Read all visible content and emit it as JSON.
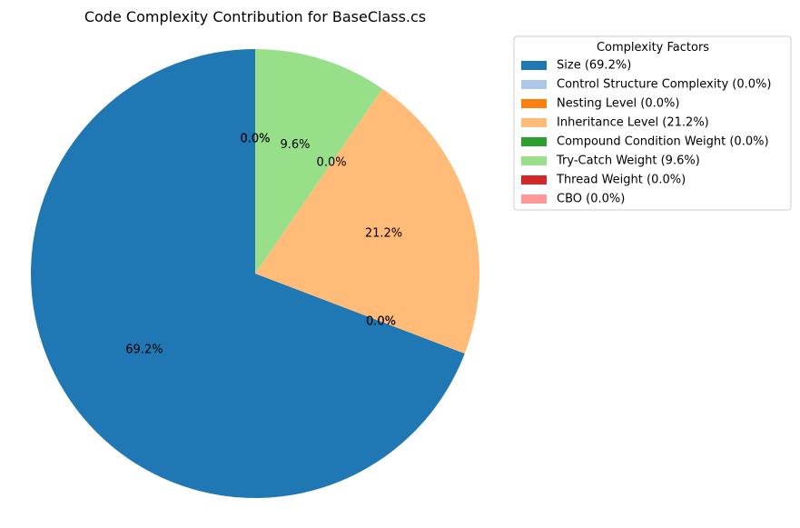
{
  "chart_data": {
    "type": "pie",
    "title": "Code Complexity Contribution for BaseClass.cs",
    "start_angle_deg": 90,
    "direction": "counterclockwise",
    "slices": [
      {
        "label": "Size",
        "value": 69.2,
        "pct_label": "69.2%",
        "legend_label": "Size (69.2%)",
        "color": "#1f77b4"
      },
      {
        "label": "Control Structure Complexity",
        "value": 0.0,
        "pct_label": "0.0%",
        "legend_label": "Control Structure Complexity (0.0%)",
        "color": "#aec7e8"
      },
      {
        "label": "Nesting Level",
        "value": 0.0,
        "pct_label": "0.0%",
        "legend_label": "Nesting Level (0.0%)",
        "color": "#ff7f0e"
      },
      {
        "label": "Inheritance Level",
        "value": 21.2,
        "pct_label": "21.2%",
        "legend_label": "Inheritance Level (21.2%)",
        "color": "#ffbb78"
      },
      {
        "label": "Compound Condition Weight",
        "value": 0.0,
        "pct_label": "0.0%",
        "legend_label": "Compound Condition Weight (0.0%)",
        "color": "#2ca02c"
      },
      {
        "label": "Try-Catch Weight",
        "value": 9.6,
        "pct_label": "9.6%",
        "legend_label": "Try-Catch Weight (9.6%)",
        "color": "#98df8a"
      },
      {
        "label": "Thread Weight",
        "value": 0.0,
        "pct_label": "0.0%",
        "legend_label": "Thread Weight (0.0%)",
        "color": "#d62728"
      },
      {
        "label": "CBO",
        "value": 0.0,
        "pct_label": "0.0%",
        "legend_label": "CBO (0.0%)",
        "color": "#ff9896"
      }
    ],
    "legend": {
      "title": "Complexity Factors",
      "placement": "right"
    }
  }
}
